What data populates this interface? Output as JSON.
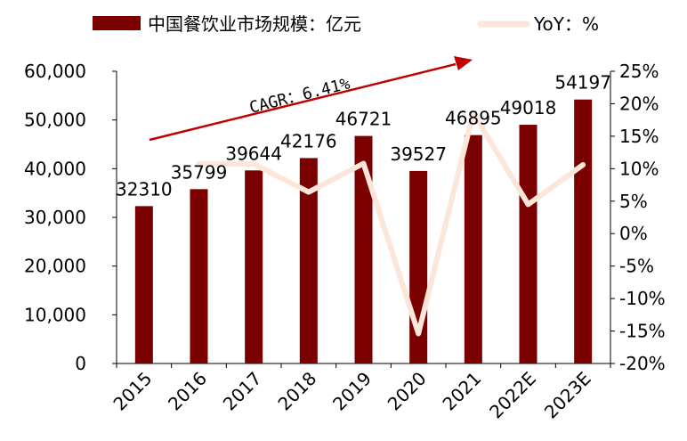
{
  "chart_data": {
    "type": "bar",
    "categories": [
      "2015",
      "2016",
      "2017",
      "2018",
      "2019",
      "2020",
      "2021",
      "2022E",
      "2023E"
    ],
    "series": [
      {
        "name": "中国餐饮业市场规模：亿元",
        "type": "bar",
        "axis": "left",
        "values": [
          32310,
          35799,
          39644,
          42176,
          46721,
          39527,
          46895,
          49018,
          54197
        ],
        "data_labels": [
          "32310",
          "35799",
          "39644",
          "42176",
          "46721",
          "39527",
          "46895",
          "49018",
          "54197"
        ]
      },
      {
        "name": "YoY：%",
        "type": "line",
        "axis": "right",
        "values": [
          null,
          10.8,
          10.7,
          6.4,
          10.8,
          -15.4,
          18.6,
          4.5,
          10.6
        ]
      }
    ],
    "y_left": {
      "lim": [
        0,
        60000
      ],
      "ticks": [
        0,
        10000,
        20000,
        30000,
        40000,
        50000,
        60000
      ],
      "tick_labels": [
        "0",
        "10,000",
        "20,000",
        "30,000",
        "40,000",
        "50,000",
        "60,000"
      ]
    },
    "y_right": {
      "lim": [
        -20,
        25
      ],
      "ticks": [
        -20,
        -15,
        -10,
        -5,
        0,
        5,
        10,
        15,
        20,
        25
      ],
      "tick_labels": [
        "-20%",
        "-15%",
        "-10%",
        "-5%",
        "0%",
        "5%",
        "10%",
        "15%",
        "20%",
        "25%"
      ]
    },
    "annotation": {
      "text": "CAGR：6.41%",
      "arrow": "rising"
    },
    "legend_position": "top",
    "grid": false,
    "colors": {
      "bar": "#7b0000",
      "line": "#fbe6d9",
      "arrow": "#c00000"
    }
  }
}
